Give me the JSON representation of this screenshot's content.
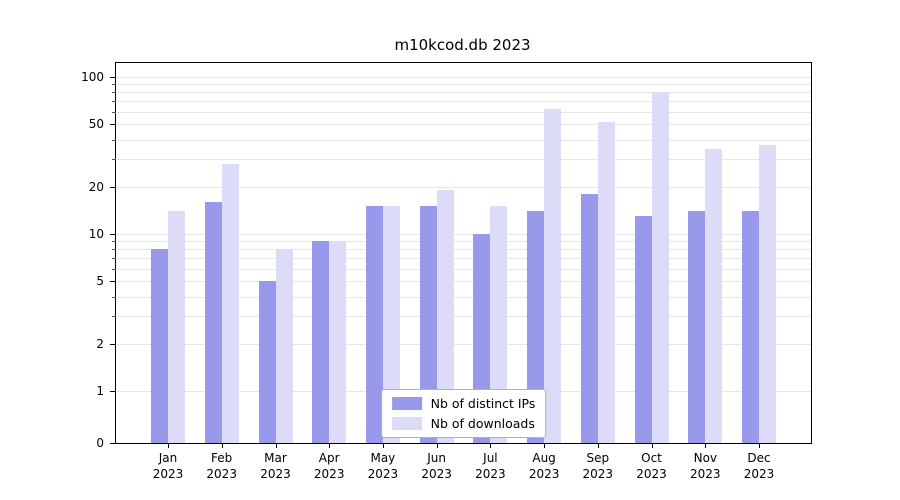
{
  "chart_data": {
    "type": "bar",
    "title": "m10kcod.db 2023",
    "year_label": "2023",
    "months": [
      "Jan",
      "Feb",
      "Mar",
      "Apr",
      "May",
      "Jun",
      "Jul",
      "Aug",
      "Sep",
      "Oct",
      "Nov",
      "Dec"
    ],
    "series": [
      {
        "name": "Nb of distinct IPs",
        "color": "#9999eb",
        "values": [
          8,
          16,
          5,
          9,
          15,
          15,
          10,
          14,
          18,
          13,
          14,
          14
        ]
      },
      {
        "name": "Nb of downloads",
        "color": "#dcdcf8",
        "values": [
          14,
          28,
          8,
          9,
          15,
          19,
          15,
          63,
          52,
          80,
          35,
          37
        ]
      }
    ],
    "y_scale": "symlog",
    "y_ticks": [
      0,
      1,
      2,
      5,
      10,
      20,
      50,
      100
    ],
    "ylim": [
      0,
      100
    ],
    "grid": true,
    "legend_position": "lower center"
  }
}
